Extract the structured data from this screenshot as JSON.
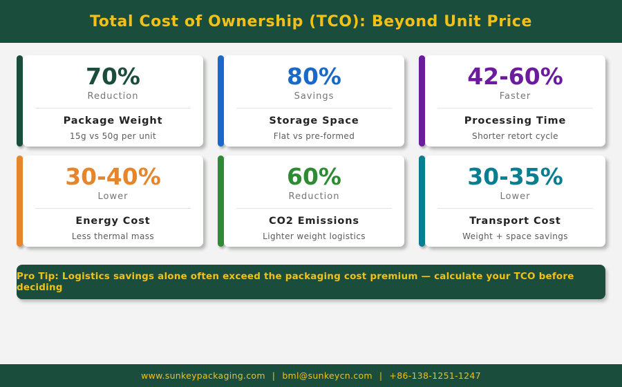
{
  "header": {
    "title": "Total Cost of Ownership (TCO): Beyond Unit Price"
  },
  "cards": [
    {
      "value": "70%",
      "label": "Reduction",
      "title": "Package Weight",
      "subtitle": "15g vs 50g per unit",
      "color": "#1a4d3b"
    },
    {
      "value": "80%",
      "label": "Savings",
      "title": "Storage Space",
      "subtitle": "Flat vs pre-formed",
      "color": "#1a68c8"
    },
    {
      "value": "42-60%",
      "label": "Faster",
      "title": "Processing Time",
      "subtitle": "Shorter retort cycle",
      "color": "#6d1b9e"
    },
    {
      "value": "30-40%",
      "label": "Lower",
      "title": "Energy Cost",
      "subtitle": "Less thermal mass",
      "color": "#e6862c"
    },
    {
      "value": "60%",
      "label": "Reduction",
      "title": "CO2 Emissions",
      "subtitle": "Lighter weight logistics",
      "color": "#2e8b33"
    },
    {
      "value": "30-35%",
      "label": "Lower",
      "title": "Transport Cost",
      "subtitle": "Weight + space savings",
      "color": "#0a7e91"
    }
  ],
  "pro_tip": {
    "text": "Pro Tip: Logistics savings alone often exceed the packaging cost premium — calculate your TCO before deciding"
  },
  "footer": {
    "website": "www.sunkeypackaging.com",
    "separator": "|",
    "email": "bml@sunkeycn.com",
    "phone": "+86-138-1251-1247"
  },
  "colors": {
    "brand_green": "#1a4d3b",
    "accent_yellow": "#f2c118",
    "page_background": "#f2f3f2",
    "card_background": "#ffffff"
  }
}
